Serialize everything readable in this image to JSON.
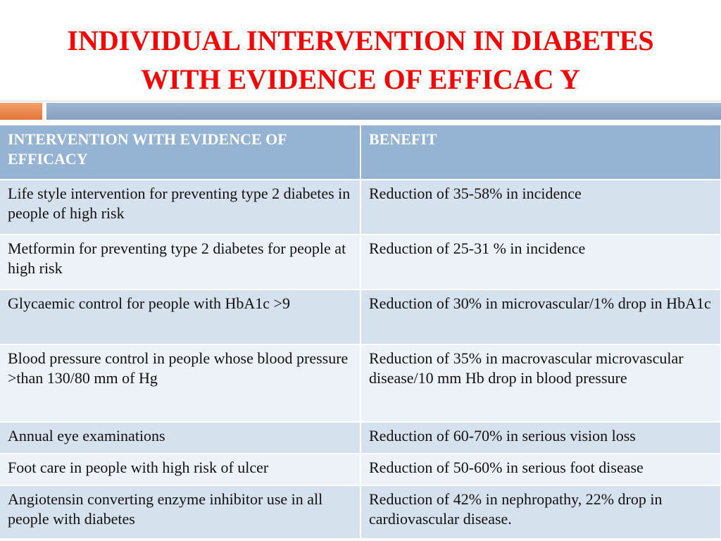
{
  "title": {
    "line1": "INDIVIDUAL INTERVENTION IN DIABETES",
    "line2": "WITH EVIDENCE OF EFFICAC Y"
  },
  "colors": {
    "title": "#ff0000",
    "header_bg": "#95b3d3",
    "row_dark": "#d6e1ee",
    "row_light": "#edf2f8",
    "accent_orange": "#e4743a",
    "accent_blue": "#86a0c1"
  },
  "table": {
    "headers": [
      "INTERVENTION WITH EVIDENCE OF EFFICACY",
      "BENEFIT"
    ],
    "rows": [
      [
        "Life style intervention for preventing type 2 diabetes in people of high risk",
        "Reduction of 35-58% in incidence"
      ],
      [
        "Metformin for preventing type 2 diabetes for people at high risk",
        "Reduction of 25-31 % in incidence"
      ],
      [
        "Glycaemic control for people with HbA1c >9",
        "Reduction of 30% in microvascular/1% drop in HbA1c"
      ],
      [
        "Blood pressure control in people whose blood pressure >than 130/80 mm of Hg",
        "Reduction of 35% in macrovascular microvascular disease/10 mm Hb drop in blood pressure"
      ],
      [
        "Annual eye examinations",
        "Reduction of 60-70% in serious vision loss"
      ],
      [
        "Foot care in people with high risk of ulcer",
        "Reduction of 50-60% in serious foot disease"
      ],
      [
        "Angiotensin converting enzyme inhibitor use in all people with diabetes",
        "Reduction of 42% in nephropathy, 22% drop in cardiovascular disease."
      ]
    ]
  }
}
